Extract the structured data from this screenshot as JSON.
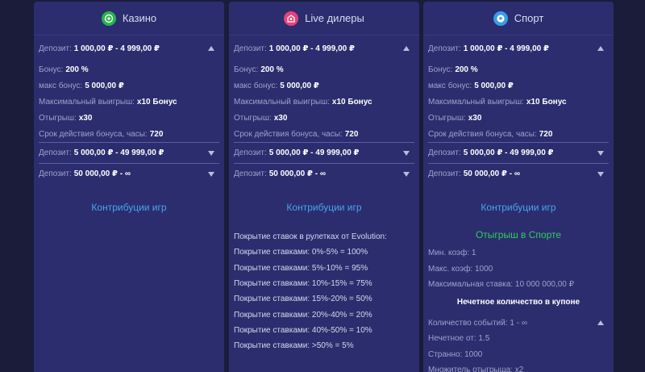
{
  "columns": [
    {
      "title": "Казино",
      "icon": "casino-chip-icon",
      "icon_color": "#27b34a",
      "first": {
        "label": "Депозит:",
        "value": "1 000,00 ₽ - 4 999,00 ₽"
      },
      "details": [
        {
          "label": "Бонус:",
          "value": "200 %"
        },
        {
          "label": "макс бонус:",
          "value": "5 000,00 ₽"
        },
        {
          "label": "Максимальный выигрыш:",
          "value": "x10 Бонус"
        },
        {
          "label": "Отыгрыш:",
          "value": "x30"
        },
        {
          "label": "Срок действия бонуса, часы:",
          "value": "720"
        }
      ],
      "tiers": [
        {
          "label": "Депозит:",
          "value": "5 000,00 ₽ - 49 999,00 ₽"
        },
        {
          "label": "Депозит:",
          "value": "50 000,00 ₽ - ∞"
        }
      ],
      "contrib": "Контрибуции игр"
    },
    {
      "title": "Live дилеры",
      "icon": "live-dealer-icon",
      "icon_color": "#e8407a",
      "first": {
        "label": "Депозит:",
        "value": "1 000,00 ₽ - 4 999,00 ₽"
      },
      "details": [
        {
          "label": "Бонус:",
          "value": "200 %"
        },
        {
          "label": "макс бонус:",
          "value": "5 000,00 ₽"
        },
        {
          "label": "Максимальный выигрыш:",
          "value": "x10 Бонус"
        },
        {
          "label": "Отыгрыш:",
          "value": "x30"
        },
        {
          "label": "Срок действия бонуса, часы:",
          "value": "720"
        }
      ],
      "tiers": [
        {
          "label": "Депозит:",
          "value": "5 000,00 ₽ - 49 999,00 ₽"
        },
        {
          "label": "Депозит:",
          "value": "50 000,00 ₽ - ∞"
        }
      ],
      "contrib": "Контрибуции игр",
      "coverage": [
        "Покрытие ставок в рулетках от Evolution:",
        "Покрытие ставками: 0%-5% = 100%",
        "Покрытие ставками: 5%-10% = 95%",
        "Покрытие ставками: 10%-15% = 75%",
        "Покрытие ставками: 15%-20% = 50%",
        "Покрытие ставками: 20%-40% = 20%",
        "Покрытие ставками: 40%-50% = 10%",
        "Покрытие ставками: >50% = 5%"
      ]
    },
    {
      "title": "Спорт",
      "icon": "soccer-ball-icon",
      "icon_color": "#3a9de8",
      "first": {
        "label": "Депозит:",
        "value": "1 000,00 ₽ - 4 999,00 ₽"
      },
      "details": [
        {
          "label": "Бонус:",
          "value": "200 %"
        },
        {
          "label": "макс бонус:",
          "value": "5 000,00 ₽"
        },
        {
          "label": "Максимальный выигрыш:",
          "value": "x10 Бонус"
        },
        {
          "label": "Отыгрыш:",
          "value": "x30"
        },
        {
          "label": "Срок действия бонуса, часы:",
          "value": "720"
        }
      ],
      "tiers": [
        {
          "label": "Депозит:",
          "value": "5 000,00 ₽ - 49 999,00 ₽"
        },
        {
          "label": "Депозит:",
          "value": "50 000,00 ₽ - ∞"
        }
      ],
      "contrib": "Контрибуции игр",
      "sport_title": "Отыгрыш в Спорте",
      "sport_rows": [
        "Мин. коэф: 1",
        "Макс. коэф: 1000",
        "Максимальная ставка: 10 000 000,00 ₽"
      ],
      "sub_title": "Нечетное количество в купоне",
      "sub_rows": [
        "Количество событий: 1 - ∞",
        "Нечетное от: 1.5",
        "Странно: 1000",
        "Множитель отыгрыша: x2"
      ]
    }
  ]
}
